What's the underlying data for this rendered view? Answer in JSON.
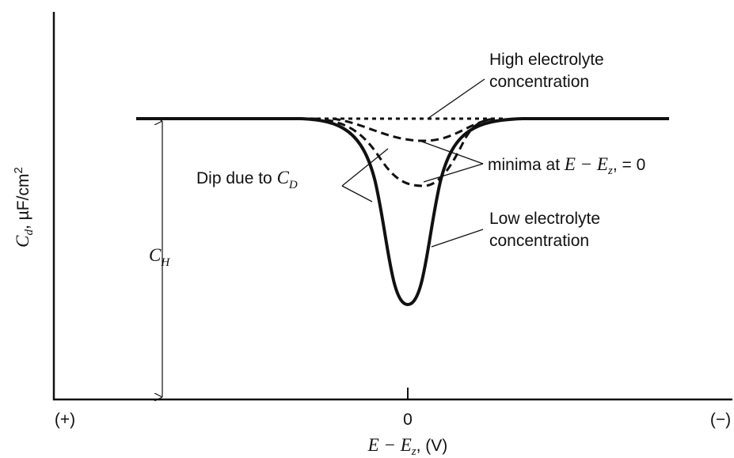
{
  "y_axis_label": {
    "symbol": "C",
    "subscript": "d",
    "unit": ", µF/cm",
    "superscript": "2"
  },
  "x_axis_label": {
    "symbol": "E − E",
    "subscript": "z",
    "unit": ", (V)"
  },
  "x_axis_ticks": {
    "left": "(+)",
    "center": "0",
    "right": "(−)"
  },
  "annotations": {
    "high": [
      "High electrolyte",
      "concentration"
    ],
    "minima": {
      "text": "minima at ",
      "symbol": "E − E",
      "subscript": "z",
      "rest": ", = 0"
    },
    "dip": {
      "text": "Dip due to ",
      "symbol": "C",
      "subscript": "D"
    },
    "low": [
      "Low electrolyte",
      "concentration"
    ],
    "ch": {
      "symbol": "C",
      "subscript": "H"
    }
  }
}
